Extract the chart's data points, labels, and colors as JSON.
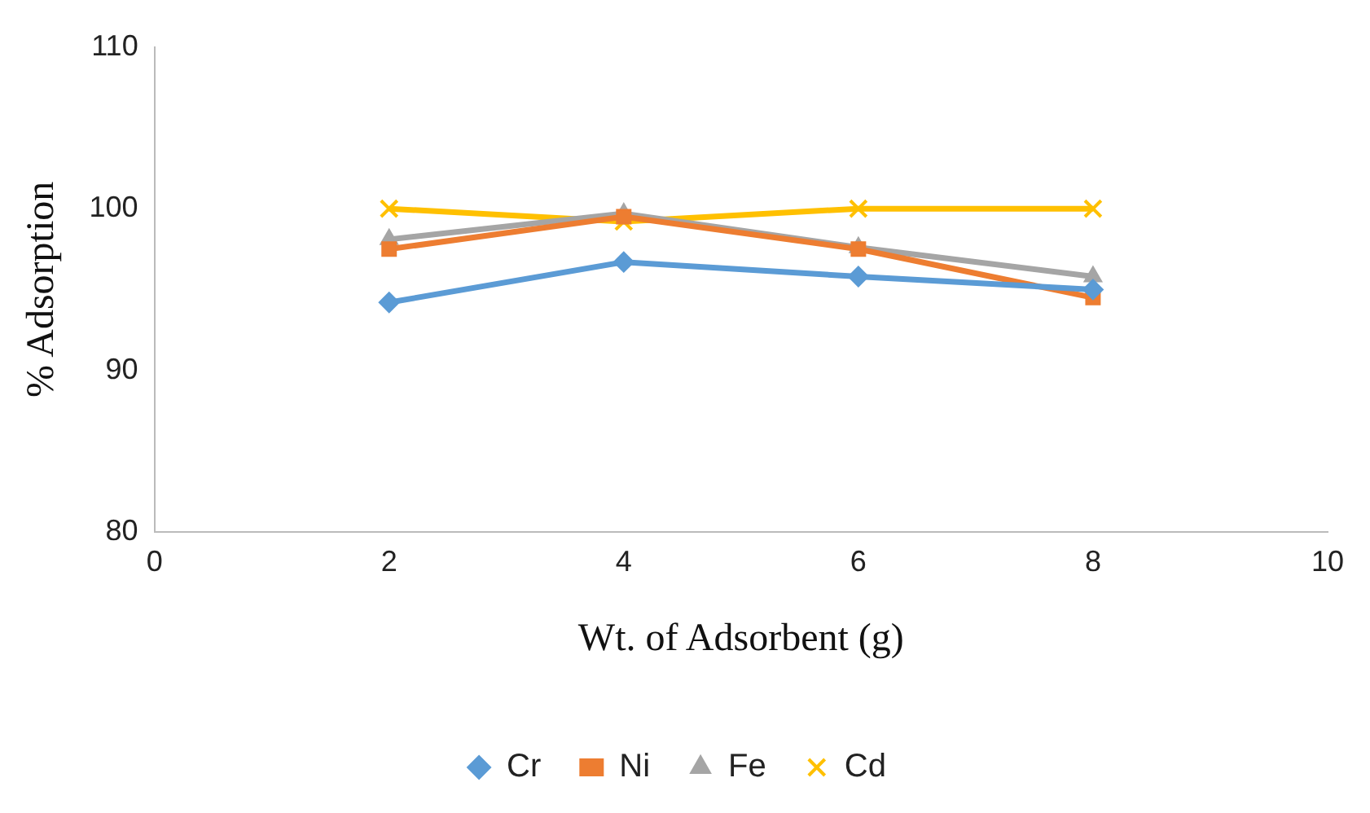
{
  "chart_data": {
    "type": "line",
    "xlabel": "Wt. of Adsorbent (g)",
    "ylabel": "% Adsorption",
    "xlim": [
      0,
      10
    ],
    "xticks": [
      0,
      2,
      4,
      6,
      8,
      10
    ],
    "ylim": [
      80,
      110
    ],
    "yticks": [
      80,
      90,
      100,
      110
    ],
    "grid": false,
    "legend": "bottom",
    "line_style": "solid",
    "series": [
      {
        "name": "Cr",
        "color": "#5b9bd5",
        "marker": "diamond",
        "x": [
          2,
          4,
          6,
          8
        ],
        "values": [
          94.2,
          96.7,
          95.8,
          95.0
        ]
      },
      {
        "name": "Ni",
        "color": "#ed7d31",
        "marker": "square",
        "x": [
          2,
          4,
          6,
          8
        ],
        "values": [
          97.5,
          99.5,
          97.5,
          94.5
        ]
      },
      {
        "name": "Fe",
        "color": "#a5a5a5",
        "marker": "triangle",
        "x": [
          2,
          4,
          6,
          8
        ],
        "values": [
          98.1,
          99.7,
          97.6,
          95.8
        ]
      },
      {
        "name": "Cd",
        "color": "#ffc000",
        "marker": "cross",
        "x": [
          2,
          4,
          6,
          8
        ],
        "values": [
          100,
          99.2,
          100,
          100
        ]
      }
    ]
  }
}
